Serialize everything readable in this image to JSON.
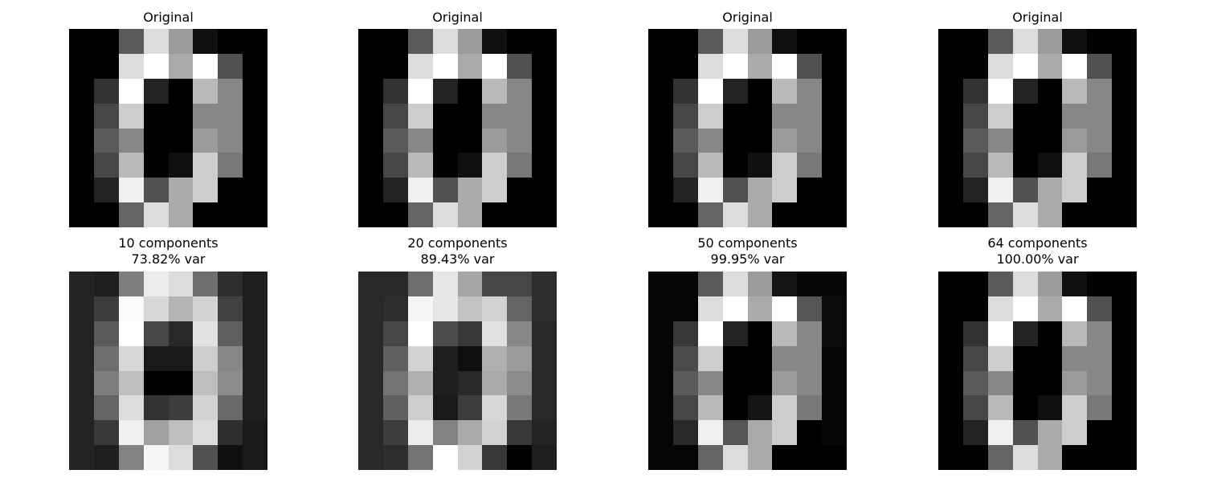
{
  "chart_data": [
    {
      "type": "heatmap",
      "title": "Original",
      "subtitle": "",
      "cmap": "gray",
      "pixels": [
        [
          0,
          0,
          90,
          220,
          155,
          15,
          0,
          0
        ],
        [
          0,
          0,
          220,
          255,
          170,
          255,
          80,
          0
        ],
        [
          0,
          50,
          255,
          35,
          0,
          185,
          135,
          0
        ],
        [
          0,
          70,
          205,
          0,
          0,
          135,
          135,
          0
        ],
        [
          0,
          90,
          135,
          0,
          0,
          155,
          135,
          0
        ],
        [
          0,
          70,
          185,
          0,
          15,
          205,
          120,
          0
        ],
        [
          0,
          35,
          240,
          80,
          170,
          205,
          0,
          0
        ],
        [
          0,
          0,
          100,
          220,
          170,
          0,
          0,
          0
        ]
      ]
    },
    {
      "type": "heatmap",
      "title": "Original",
      "subtitle": "",
      "cmap": "gray",
      "pixels": [
        [
          0,
          0,
          90,
          220,
          155,
          15,
          0,
          0
        ],
        [
          0,
          0,
          220,
          255,
          170,
          255,
          80,
          0
        ],
        [
          0,
          50,
          255,
          35,
          0,
          185,
          135,
          0
        ],
        [
          0,
          70,
          205,
          0,
          0,
          135,
          135,
          0
        ],
        [
          0,
          90,
          135,
          0,
          0,
          155,
          135,
          0
        ],
        [
          0,
          70,
          185,
          0,
          15,
          205,
          120,
          0
        ],
        [
          0,
          35,
          240,
          80,
          170,
          205,
          0,
          0
        ],
        [
          0,
          0,
          100,
          220,
          170,
          0,
          0,
          0
        ]
      ]
    },
    {
      "type": "heatmap",
      "title": "Original",
      "subtitle": "",
      "cmap": "gray",
      "pixels": [
        [
          0,
          0,
          90,
          220,
          155,
          15,
          0,
          0
        ],
        [
          0,
          0,
          220,
          255,
          170,
          255,
          80,
          0
        ],
        [
          0,
          50,
          255,
          35,
          0,
          185,
          135,
          0
        ],
        [
          0,
          70,
          205,
          0,
          0,
          135,
          135,
          0
        ],
        [
          0,
          90,
          135,
          0,
          0,
          155,
          135,
          0
        ],
        [
          0,
          70,
          185,
          0,
          15,
          205,
          120,
          0
        ],
        [
          0,
          35,
          240,
          80,
          170,
          205,
          0,
          0
        ],
        [
          0,
          0,
          100,
          220,
          170,
          0,
          0,
          0
        ]
      ]
    },
    {
      "type": "heatmap",
      "title": "Original",
      "subtitle": "",
      "cmap": "gray",
      "pixels": [
        [
          0,
          0,
          90,
          220,
          155,
          15,
          0,
          0
        ],
        [
          0,
          0,
          220,
          255,
          170,
          255,
          80,
          0
        ],
        [
          0,
          50,
          255,
          35,
          0,
          185,
          135,
          0
        ],
        [
          0,
          70,
          205,
          0,
          0,
          135,
          135,
          0
        ],
        [
          0,
          90,
          135,
          0,
          0,
          155,
          135,
          0
        ],
        [
          0,
          70,
          185,
          0,
          15,
          205,
          120,
          0
        ],
        [
          0,
          35,
          240,
          80,
          170,
          205,
          0,
          0
        ],
        [
          0,
          0,
          100,
          220,
          170,
          0,
          0,
          0
        ]
      ]
    },
    {
      "type": "heatmap",
      "title": "10 components",
      "subtitle": "73.82% var",
      "cmap": "gray",
      "pixels": [
        [
          35,
          30,
          125,
          235,
          220,
          110,
          45,
          30
        ],
        [
          35,
          60,
          250,
          215,
          180,
          210,
          65,
          30
        ],
        [
          35,
          90,
          255,
          70,
          40,
          225,
          95,
          30
        ],
        [
          35,
          110,
          215,
          25,
          25,
          205,
          135,
          30
        ],
        [
          35,
          125,
          190,
          0,
          0,
          190,
          140,
          30
        ],
        [
          35,
          100,
          220,
          50,
          60,
          210,
          105,
          30
        ],
        [
          35,
          55,
          240,
          160,
          190,
          220,
          45,
          25
        ],
        [
          35,
          30,
          130,
          245,
          220,
          80,
          15,
          25
        ]
      ]
    },
    {
      "type": "heatmap",
      "title": "20 components",
      "subtitle": "89.43% var",
      "cmap": "gray",
      "pixels": [
        [
          40,
          40,
          110,
          230,
          165,
          70,
          70,
          45
        ],
        [
          40,
          45,
          245,
          230,
          195,
          210,
          100,
          45
        ],
        [
          40,
          70,
          255,
          75,
          55,
          225,
          135,
          40
        ],
        [
          40,
          95,
          210,
          30,
          15,
          175,
          155,
          40
        ],
        [
          40,
          115,
          175,
          30,
          40,
          170,
          140,
          40
        ],
        [
          40,
          95,
          205,
          25,
          60,
          215,
          120,
          40
        ],
        [
          40,
          60,
          235,
          130,
          170,
          210,
          55,
          35
        ],
        [
          40,
          45,
          115,
          255,
          210,
          55,
          0,
          30
        ]
      ]
    },
    {
      "type": "heatmap",
      "title": "50 components",
      "subtitle": "99.95% var",
      "cmap": "gray",
      "pixels": [
        [
          5,
          5,
          90,
          220,
          155,
          20,
          5,
          5
        ],
        [
          5,
          5,
          220,
          255,
          170,
          255,
          85,
          10
        ],
        [
          5,
          55,
          255,
          35,
          0,
          185,
          135,
          10
        ],
        [
          5,
          75,
          205,
          0,
          0,
          135,
          135,
          5
        ],
        [
          5,
          90,
          135,
          0,
          0,
          155,
          135,
          5
        ],
        [
          5,
          70,
          185,
          0,
          20,
          205,
          120,
          5
        ],
        [
          5,
          40,
          240,
          85,
          170,
          205,
          0,
          5
        ],
        [
          5,
          5,
          100,
          220,
          170,
          0,
          0,
          0
        ]
      ]
    },
    {
      "type": "heatmap",
      "title": "64 components",
      "subtitle": "100.00% var",
      "cmap": "gray",
      "pixels": [
        [
          0,
          0,
          90,
          220,
          155,
          15,
          0,
          0
        ],
        [
          0,
          0,
          220,
          255,
          170,
          255,
          80,
          0
        ],
        [
          0,
          50,
          255,
          35,
          0,
          185,
          135,
          0
        ],
        [
          0,
          70,
          205,
          0,
          0,
          135,
          135,
          0
        ],
        [
          0,
          90,
          135,
          0,
          0,
          155,
          135,
          0
        ],
        [
          0,
          70,
          185,
          0,
          15,
          205,
          120,
          0
        ],
        [
          0,
          35,
          240,
          80,
          170,
          205,
          0,
          0
        ],
        [
          0,
          0,
          100,
          220,
          170,
          0,
          0,
          0
        ]
      ]
    }
  ]
}
